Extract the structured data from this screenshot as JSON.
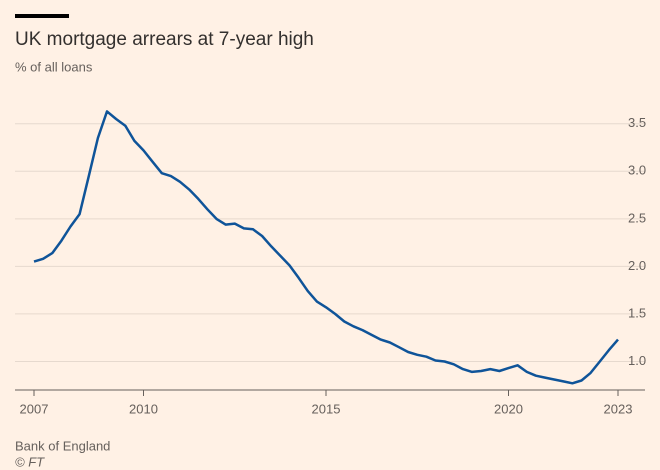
{
  "chart_data": {
    "type": "line",
    "title": "UK mortgage arrears at 7-year high",
    "subtitle": "% of all loans",
    "source": "Bank of England",
    "credit": "© FT",
    "x": [
      2007,
      2007.25,
      2007.5,
      2007.75,
      2008,
      2008.25,
      2008.5,
      2008.75,
      2009,
      2009.25,
      2009.5,
      2009.75,
      2010,
      2010.25,
      2010.5,
      2010.75,
      2011,
      2011.25,
      2011.5,
      2011.75,
      2012,
      2012.25,
      2012.5,
      2012.75,
      2013,
      2013.25,
      2013.5,
      2013.75,
      2014,
      2014.25,
      2014.5,
      2014.75,
      2015,
      2015.25,
      2015.5,
      2015.75,
      2016,
      2016.25,
      2016.5,
      2016.75,
      2017,
      2017.25,
      2017.5,
      2017.75,
      2018,
      2018.25,
      2018.5,
      2018.75,
      2019,
      2019.25,
      2019.5,
      2019.75,
      2020,
      2020.25,
      2020.5,
      2020.75,
      2021,
      2021.25,
      2021.5,
      2021.75,
      2022,
      2022.25,
      2022.5,
      2022.75,
      2023
    ],
    "series": [
      {
        "name": "Mortgage arrears",
        "color": "#0f5499",
        "values": [
          2.05,
          2.08,
          2.14,
          2.27,
          2.42,
          2.55,
          2.95,
          3.35,
          3.63,
          3.55,
          3.48,
          3.32,
          3.22,
          3.1,
          2.98,
          2.95,
          2.89,
          2.81,
          2.71,
          2.6,
          2.5,
          2.44,
          2.45,
          2.4,
          2.39,
          2.32,
          2.21,
          2.11,
          2.01,
          1.88,
          1.74,
          1.63,
          1.57,
          1.5,
          1.42,
          1.37,
          1.33,
          1.28,
          1.23,
          1.2,
          1.15,
          1.1,
          1.07,
          1.05,
          1.01,
          1.0,
          0.97,
          0.92,
          0.89,
          0.9,
          0.92,
          0.9,
          0.93,
          0.96,
          0.89,
          0.85,
          0.83,
          0.81,
          0.79,
          0.77,
          0.8,
          0.88,
          1.0,
          1.12,
          1.23
        ]
      }
    ],
    "xlim": [
      2007,
      2023
    ],
    "xticks": [
      2007,
      2010,
      2015,
      2020,
      2023
    ],
    "ylim": [
      0.7,
      3.75
    ],
    "yticks": [
      {
        "value": 1,
        "label": "1.0"
      },
      1.5,
      {
        "value": 2,
        "label": "2.0"
      },
      2.5,
      {
        "value": 3,
        "label": "3.0"
      },
      3.5
    ],
    "grid": true
  }
}
